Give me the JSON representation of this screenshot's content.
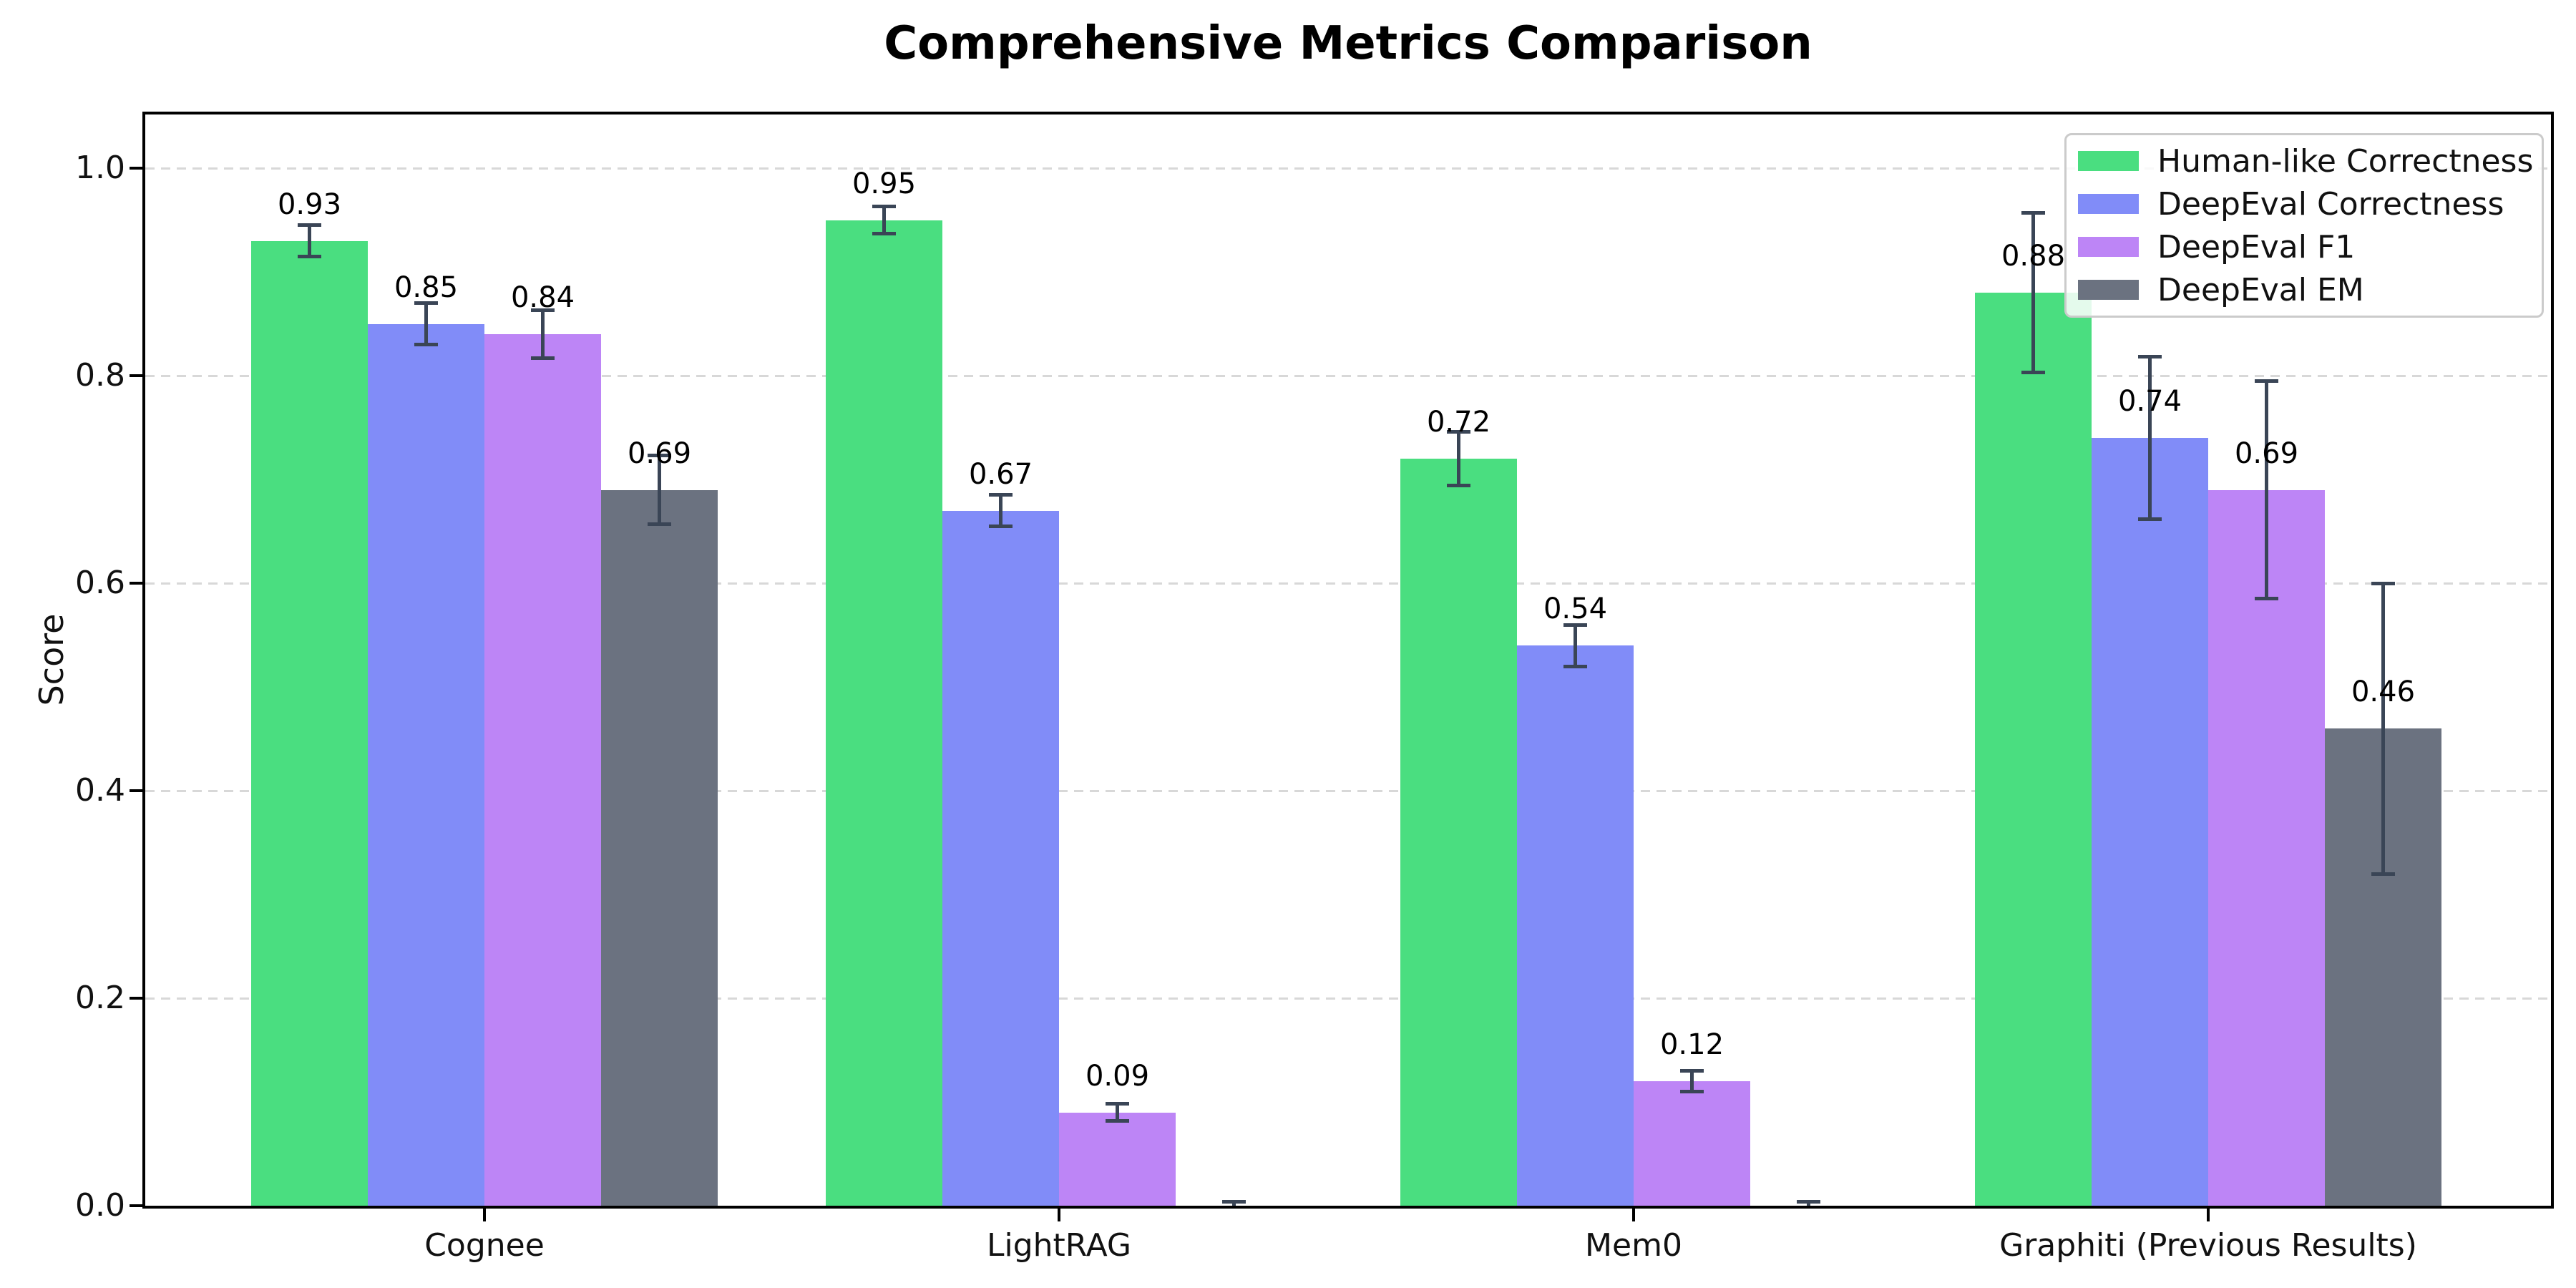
{
  "chart_data": {
    "type": "bar",
    "title": "Comprehensive Metrics Comparison",
    "xlabel": "",
    "ylabel": "Score",
    "ylim": [
      0,
      1.05
    ],
    "grid": "horizontal-dashed",
    "legend_position": "upper-right",
    "error_bar_color": "#3a4556",
    "axis_color": "#000000",
    "gridline_color": "#d8d8d8",
    "categories": [
      "Cognee",
      "LightRAG",
      "Mem0",
      "Graphiti (Previous Results)"
    ],
    "yticks": [
      0.0,
      0.2,
      0.4,
      0.6,
      0.8,
      1.0
    ],
    "yticklabels": [
      "0.0",
      "0.2",
      "0.4",
      "0.6",
      "0.8",
      "1.0"
    ],
    "series": [
      {
        "name": "Human-like Correctness",
        "color": "#4ade80",
        "values": [
          0.93,
          0.95,
          0.72,
          0.88
        ],
        "errors": [
          0.015,
          0.013,
          0.026,
          0.077
        ],
        "labels": [
          "0.93",
          "0.95",
          "0.72",
          "0.88"
        ]
      },
      {
        "name": "DeepEval Correctness",
        "color": "#818cf8",
        "values": [
          0.85,
          0.67,
          0.54,
          0.74
        ],
        "errors": [
          0.02,
          0.015,
          0.02,
          0.078
        ],
        "labels": [
          "0.85",
          "0.67",
          "0.54",
          "0.74"
        ]
      },
      {
        "name": "DeepEval F1",
        "color": "#bd85f6",
        "values": [
          0.84,
          0.09,
          0.12,
          0.69
        ],
        "errors": [
          0.023,
          0.008,
          0.01,
          0.105
        ],
        "labels": [
          "0.84",
          "0.09",
          "0.12",
          "0.69"
        ]
      },
      {
        "name": "DeepEval EM",
        "color": "#6b7280",
        "values": [
          0.69,
          0.0,
          0.0,
          0.46
        ],
        "errors": [
          0.033,
          0.004,
          0.004,
          0.14
        ],
        "labels": [
          "0.69",
          "",
          "",
          "0.46"
        ]
      }
    ]
  }
}
